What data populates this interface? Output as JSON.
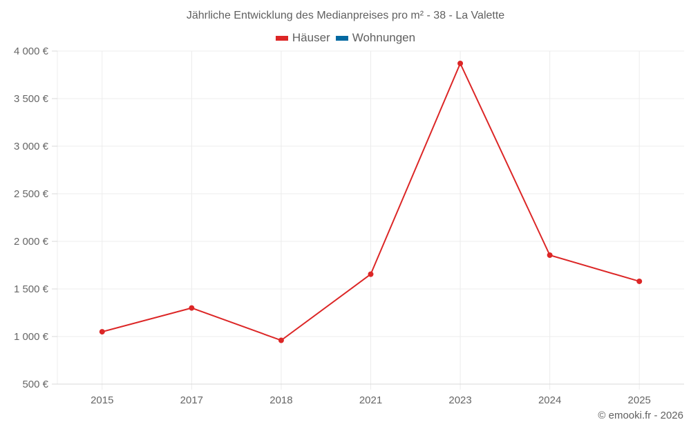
{
  "chart": {
    "title": "Jährliche Entwicklung des Medianpreises pro m² - 38 - La Valette",
    "legend": [
      {
        "label": "Häuser",
        "color": "#dc2626"
      },
      {
        "label": "Wohnungen",
        "color": "#0369a1"
      }
    ],
    "credit": "© emooki.fr - 2026"
  },
  "chart_data": {
    "type": "line",
    "title": "Jährliche Entwicklung des Medianpreises pro m² - 38 - La Valette",
    "xlabel": "",
    "ylabel": "",
    "categories": [
      "2015",
      "2017",
      "2018",
      "2021",
      "2023",
      "2024",
      "2025"
    ],
    "series": [
      {
        "name": "Häuser",
        "color": "#dc2626",
        "values": [
          1050,
          1300,
          960,
          1655,
          3870,
          1855,
          1580
        ]
      },
      {
        "name": "Wohnungen",
        "color": "#0369a1",
        "values": []
      }
    ],
    "ylim": [
      500,
      4000
    ],
    "yticks": [
      500,
      1000,
      1500,
      2000,
      2500,
      3000,
      3500,
      4000
    ],
    "ytick_labels": [
      "500 €",
      "1 000 €",
      "1 500 €",
      "2 000 €",
      "2 500 €",
      "3 000 €",
      "3 500 €",
      "4 000 €"
    ],
    "grid": true,
    "legend_position": "top"
  }
}
